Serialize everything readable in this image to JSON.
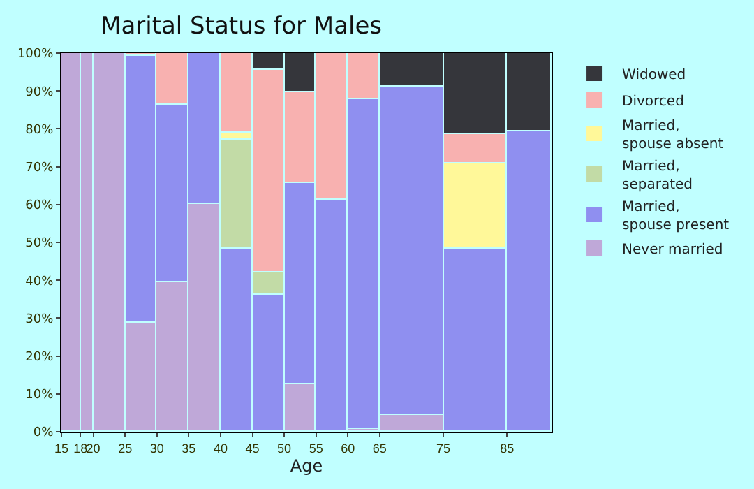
{
  "chart_data": {
    "type": "bar",
    "stacked": true,
    "title": "Marital Status for Males",
    "xlabel": "Age",
    "x": [
      16.5,
      19,
      22.5,
      27.5,
      32.5,
      37.5,
      42.5,
      47.5,
      52.5,
      57.5,
      62.5,
      70,
      80,
      88.5
    ],
    "xlim": [
      15,
      92
    ],
    "xticks": [
      15,
      18,
      20,
      25,
      30,
      35,
      40,
      45,
      50,
      55,
      60,
      65,
      75,
      85
    ],
    "ylim": [
      0,
      100
    ],
    "yticks": [
      {
        "value": 0,
        "label": "0%"
      },
      {
        "value": 10,
        "label": "10%"
      },
      {
        "value": 20,
        "label": "20%"
      },
      {
        "value": 30,
        "label": "30%"
      },
      {
        "value": 40,
        "label": "40%"
      },
      {
        "value": 50,
        "label": "50%"
      },
      {
        "value": 60,
        "label": "60%"
      },
      {
        "value": 70,
        "label": "70%"
      },
      {
        "value": 80,
        "label": "80%"
      },
      {
        "value": 90,
        "label": "90%"
      },
      {
        "value": 100,
        "label": "100%"
      }
    ],
    "legend": "right",
    "series": [
      {
        "name": "Never married",
        "color": "#bfa8d8",
        "values": [
          100,
          100,
          100,
          28.7,
          39.4,
          60.1,
          null,
          null,
          12.5,
          null,
          0.9,
          4.5,
          null,
          null
        ]
      },
      {
        "name": "Married, spouse present",
        "color": "#8f8ff0",
        "values": [
          null,
          null,
          null,
          70.7,
          46.8,
          39.9,
          48.5,
          36.3,
          53.1,
          61.2,
          86.8,
          86.5,
          48.5,
          79.2
        ]
      },
      {
        "name": "Married, separated",
        "color": "#c2dba6",
        "values": [
          null,
          null,
          null,
          null,
          null,
          null,
          28.5,
          5.6,
          null,
          null,
          null,
          null,
          null,
          null
        ]
      },
      {
        "name": "Married, spouse absent",
        "color": "#fff899",
        "values": [
          null,
          null,
          null,
          null,
          null,
          null,
          1.9,
          null,
          null,
          null,
          null,
          0.3,
          22.3,
          null
        ]
      },
      {
        "name": "Divorced",
        "color": "#f8b1b0",
        "values": [
          null,
          null,
          null,
          0.6,
          13.8,
          null,
          21.1,
          53.8,
          23.9,
          38.8,
          12.3,
          null,
          7.7,
          null
        ]
      },
      {
        "name": "Widowed",
        "color": "#35363b",
        "values": [
          null,
          null,
          null,
          null,
          null,
          null,
          null,
          4.3,
          10.5,
          null,
          null,
          8.7,
          21.5,
          20.8
        ]
      }
    ]
  }
}
